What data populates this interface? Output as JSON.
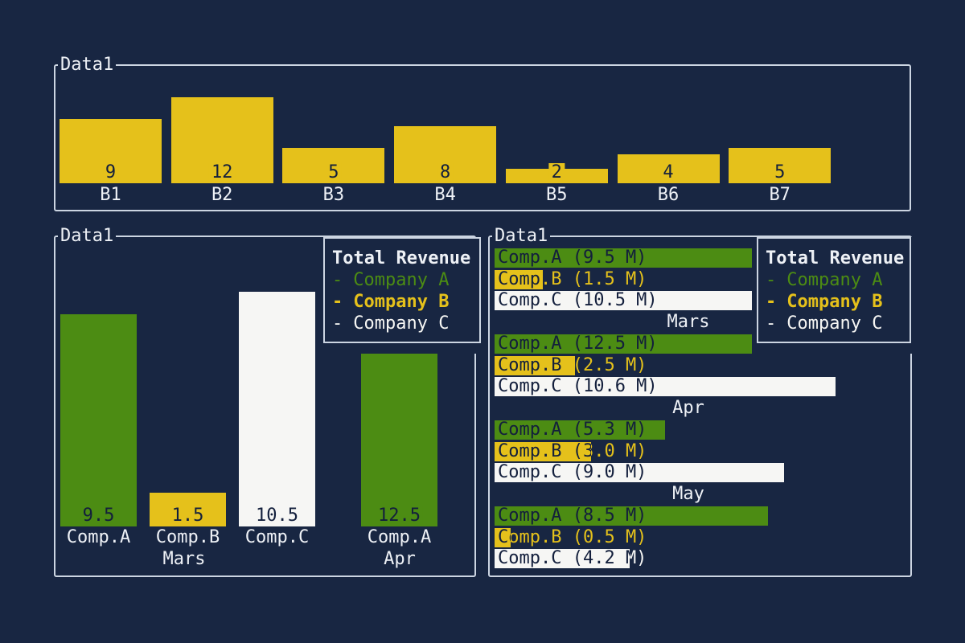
{
  "colors": {
    "background": "#182642",
    "panel_border": "#ccd5e2",
    "bar_yellow": "#e5c11b",
    "bar_green": "#4c8c13",
    "bar_white": "#f6f6f4",
    "text_light": "#eef1f6",
    "text_dark": "#131f3c"
  },
  "panels": {
    "top": {
      "title": "Data1"
    },
    "bottom_left": {
      "title": "Data1"
    },
    "bottom_right": {
      "title": "Data1"
    }
  },
  "legend": {
    "title": "Total Revenue",
    "bullet": "-",
    "items": [
      {
        "label": "Company A",
        "color": "green"
      },
      {
        "label": "Company B",
        "color": "yellow"
      },
      {
        "label": "Company C",
        "color": "white"
      }
    ]
  },
  "chart_data": [
    {
      "type": "bar",
      "panel": "top",
      "title": "Data1",
      "orientation": "vertical",
      "bar_color": "yellow",
      "value_labels_shown": true,
      "categories": [
        "B1",
        "B2",
        "B3",
        "B4",
        "B5",
        "B6",
        "B7"
      ],
      "values": [
        9,
        12,
        5,
        8,
        2,
        4,
        5
      ]
    },
    {
      "type": "bar",
      "panel": "bottom_left",
      "title": "Data1",
      "orientation": "vertical",
      "legend_title": "Total Revenue",
      "value_labels_shown": true,
      "groups": [
        {
          "label": "Mars",
          "bars": [
            {
              "category": "Comp.A",
              "series": "Company A",
              "value": 9.5,
              "color": "green"
            },
            {
              "category": "Comp.B",
              "series": "Company B",
              "value": 1.5,
              "color": "yellow"
            },
            {
              "category": "Comp.C",
              "series": "Company C",
              "value": 10.5,
              "color": "white"
            }
          ]
        },
        {
          "label": "Apr",
          "bars": [
            {
              "category": "Comp.A",
              "series": "Company A",
              "value": 12.5,
              "color": "green"
            }
          ]
        }
      ]
    },
    {
      "type": "bar",
      "panel": "bottom_right",
      "title": "Data1",
      "orientation": "horizontal",
      "legend_title": "Total Revenue",
      "groups": [
        {
          "label": "Mars",
          "bars": [
            {
              "text": "Comp.A (9.5 M)",
              "series": "Company A",
              "value": 9.5,
              "color": "green"
            },
            {
              "text": "Comp.B (1.5 M)",
              "series": "Company B",
              "value": 1.5,
              "color": "yellow"
            },
            {
              "text": "Comp.C (10.5 M)",
              "series": "Company C",
              "value": 10.5,
              "color": "white"
            }
          ]
        },
        {
          "label": "Apr",
          "bars": [
            {
              "text": "Comp.A (12.5 M)",
              "series": "Company A",
              "value": 12.5,
              "color": "green"
            },
            {
              "text": "Comp.B (2.5 M)",
              "series": "Company B",
              "value": 2.5,
              "color": "yellow"
            },
            {
              "text": "Comp.C (10.6 M)",
              "series": "Company C",
              "value": 10.6,
              "color": "white"
            }
          ]
        },
        {
          "label": "May",
          "bars": [
            {
              "text": "Comp.A (5.3 M)",
              "series": "Company A",
              "value": 5.3,
              "color": "green"
            },
            {
              "text": "Comp.B (3.0 M)",
              "series": "Company B",
              "value": 3.0,
              "color": "yellow"
            },
            {
              "text": "Comp.C (9.0 M)",
              "series": "Company C",
              "value": 9.0,
              "color": "white"
            }
          ]
        },
        {
          "label": "",
          "bars": [
            {
              "text": "Comp.A (8.5 M)",
              "series": "Company A",
              "value": 8.5,
              "color": "green"
            },
            {
              "text": "Comp.B (0.5 M)",
              "series": "Company B",
              "value": 0.5,
              "color": "yellow"
            },
            {
              "text": "Comp.C (4.2 M)",
              "series": "Company C",
              "value": 4.2,
              "color": "white"
            }
          ]
        }
      ]
    }
  ]
}
